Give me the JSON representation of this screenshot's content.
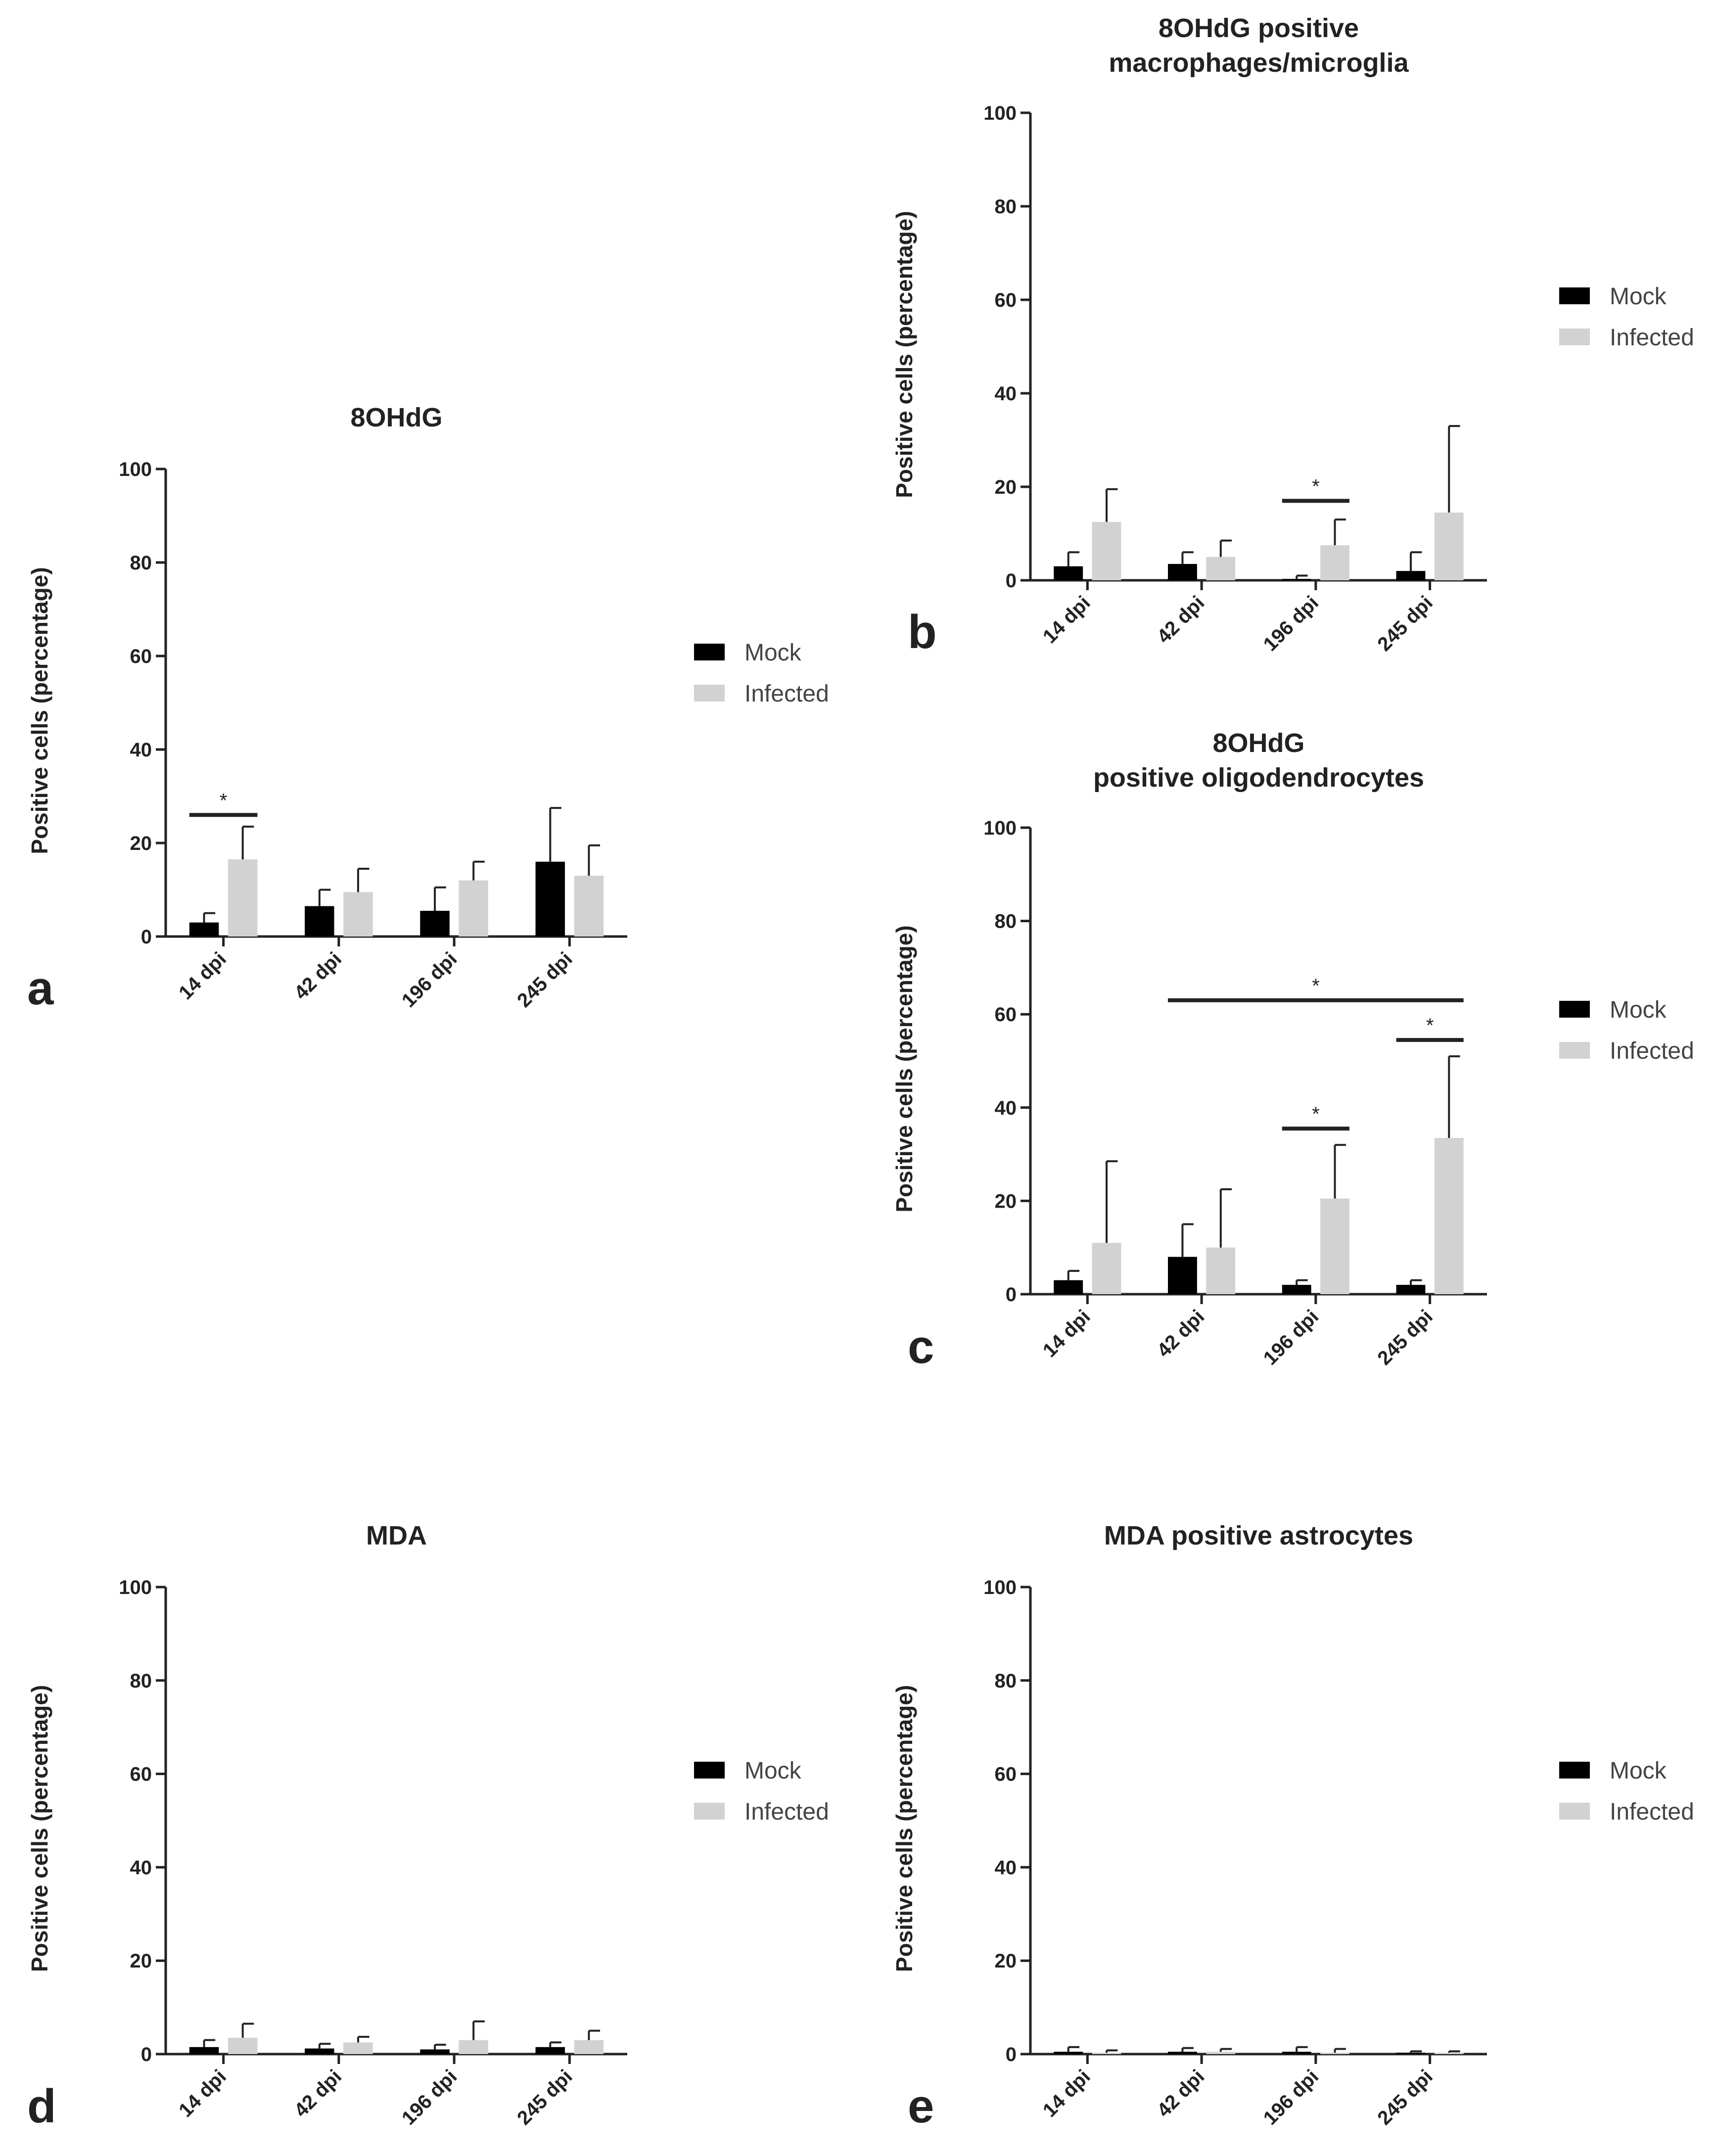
{
  "colors": {
    "mock": "#000000",
    "infected": "#d2d2d2",
    "axis": "#222222"
  },
  "chart_data": [
    {
      "id": "a",
      "panel_label": "a",
      "type": "bar",
      "title_lines": [
        "8OHdG"
      ],
      "ylabel": "Positive cells (percentage)",
      "ylim": [
        0,
        100
      ],
      "yticks": [
        "0",
        "20",
        "40",
        "60",
        "80",
        "100"
      ],
      "categories": [
        "14 dpi",
        "42 dpi",
        "196 dpi",
        "245 dpi"
      ],
      "legend": [
        "Mock",
        "Infected"
      ],
      "series": [
        {
          "name": "Mock",
          "values": [
            3,
            6.5,
            5.5,
            16
          ],
          "errors": [
            2,
            3.5,
            5,
            11.5
          ]
        },
        {
          "name": "Infected",
          "values": [
            16.5,
            9.5,
            12,
            13
          ],
          "errors": [
            7,
            5,
            4,
            6.5
          ]
        }
      ],
      "significance": [
        {
          "from": "Mock-14 dpi",
          "to": "Infected-14 dpi",
          "y": 26,
          "label": "*"
        }
      ]
    },
    {
      "id": "b",
      "panel_label": "b",
      "type": "bar",
      "title_lines": [
        "8OHdG positive",
        "macrophages/microglia"
      ],
      "ylabel": "Positive cells (percentage)",
      "ylim": [
        0,
        100
      ],
      "yticks": [
        "0",
        "20",
        "40",
        "60",
        "80",
        "100"
      ],
      "categories": [
        "14 dpi",
        "42 dpi",
        "196 dpi",
        "245 dpi"
      ],
      "legend": [
        "Mock",
        "Infected"
      ],
      "series": [
        {
          "name": "Mock",
          "values": [
            3,
            3.5,
            0.3,
            2
          ],
          "errors": [
            3,
            2.5,
            0.7,
            4
          ]
        },
        {
          "name": "Infected",
          "values": [
            12.5,
            5,
            7.5,
            14.5
          ],
          "errors": [
            7,
            3.5,
            5.5,
            18.5
          ]
        }
      ],
      "significance": [
        {
          "from": "Mock-196 dpi",
          "to": "Infected-196 dpi",
          "y": 17,
          "label": "*"
        }
      ]
    },
    {
      "id": "c",
      "panel_label": "c",
      "type": "bar",
      "title_lines": [
        "8OHdG",
        "positive oligodendrocytes"
      ],
      "ylabel": "Positive cells (percentage)",
      "ylim": [
        0,
        100
      ],
      "yticks": [
        "0",
        "20",
        "40",
        "60",
        "80",
        "100"
      ],
      "categories": [
        "14 dpi",
        "42 dpi",
        "196 dpi",
        "245 dpi"
      ],
      "legend": [
        "Mock",
        "Infected"
      ],
      "series": [
        {
          "name": "Mock",
          "values": [
            3,
            8,
            2,
            2
          ],
          "errors": [
            2,
            7,
            1,
            1
          ]
        },
        {
          "name": "Infected",
          "values": [
            11,
            10,
            20.5,
            33.5
          ],
          "errors": [
            17.5,
            12.5,
            11.5,
            17.5
          ]
        }
      ],
      "significance": [
        {
          "from": "Mock-196 dpi",
          "to": "Infected-196 dpi",
          "y": 35.5,
          "label": "*"
        },
        {
          "from": "Mock-245 dpi",
          "to": "Infected-245 dpi",
          "y": 54.5,
          "label": "*"
        },
        {
          "from": "Mock-42 dpi",
          "to": "Infected-245 dpi",
          "y": 63,
          "label": "*"
        }
      ]
    },
    {
      "id": "d",
      "panel_label": "d",
      "type": "bar",
      "title_lines": [
        "MDA"
      ],
      "ylabel": "Positive cells (percentage)",
      "ylim": [
        0,
        100
      ],
      "yticks": [
        "0",
        "20",
        "40",
        "60",
        "80",
        "100"
      ],
      "categories": [
        "14 dpi",
        "42 dpi",
        "196 dpi",
        "245 dpi"
      ],
      "legend": [
        "Mock",
        "Infected"
      ],
      "series": [
        {
          "name": "Mock",
          "values": [
            1.5,
            1.2,
            1,
            1.5
          ],
          "errors": [
            1.5,
            1,
            1,
            1
          ]
        },
        {
          "name": "Infected",
          "values": [
            3.5,
            2.5,
            3,
            3
          ],
          "errors": [
            3,
            1.2,
            4,
            2
          ]
        }
      ],
      "significance": []
    },
    {
      "id": "e",
      "panel_label": "e",
      "type": "bar",
      "title_lines": [
        "MDA positive astrocytes"
      ],
      "ylabel": "Positive cells (percentage)",
      "ylim": [
        0,
        100
      ],
      "yticks": [
        "0",
        "20",
        "40",
        "60",
        "80",
        "100"
      ],
      "categories": [
        "14 dpi",
        "42 dpi",
        "196 dpi",
        "245 dpi"
      ],
      "legend": [
        "Mock",
        "Infected"
      ],
      "series": [
        {
          "name": "Mock",
          "values": [
            0.5,
            0.5,
            0.5,
            0.3
          ],
          "errors": [
            1,
            0.8,
            1,
            0.3
          ]
        },
        {
          "name": "Infected",
          "values": [
            0.3,
            0.5,
            0.3,
            0.3
          ],
          "errors": [
            0.5,
            0.6,
            0.8,
            0.3
          ]
        }
      ],
      "significance": []
    }
  ]
}
